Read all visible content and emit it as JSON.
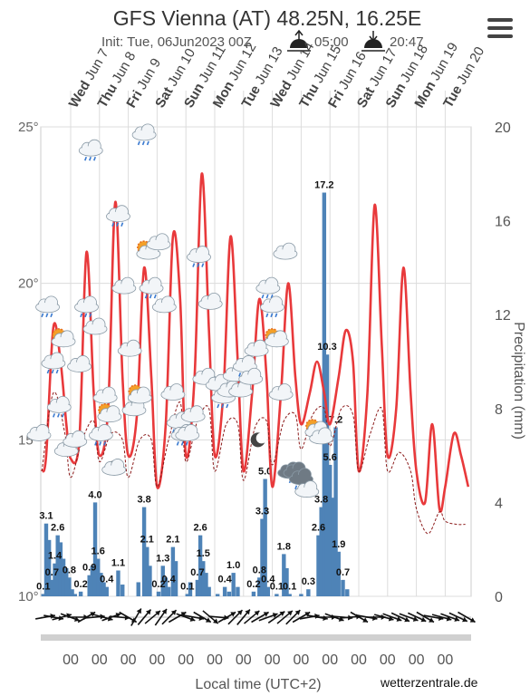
{
  "header": {
    "title": "GFS Vienna (AT) 48.25N, 16.25E",
    "init": "Init: Tue, 06Jun2023 00Z",
    "sunrise": "05:00",
    "sunset": "20:47",
    "credit": "wetterzentrale.de"
  },
  "icons": {
    "menu": "hamburger-menu-icon",
    "sunrise": "sunrise-icon",
    "sunset": "sunset-icon"
  },
  "colors": {
    "temperature": "#e8393b",
    "dewpoint": "#8b1a1a",
    "precipitation": "#4e83b7",
    "grid": "#dcdcdc"
  },
  "chart_data": {
    "type": "line",
    "x_unit": "day index (0 = Wed Jun 7 00:00 local)",
    "days": [
      {
        "dow": "Wed",
        "date": "Jun 7"
      },
      {
        "dow": "Thu",
        "date": "Jun 8"
      },
      {
        "dow": "Fri",
        "date": "Jun 9"
      },
      {
        "dow": "Sat",
        "date": "Jun 10"
      },
      {
        "dow": "Sun",
        "date": "Jun 11"
      },
      {
        "dow": "Mon",
        "date": "Jun 12"
      },
      {
        "dow": "Tue",
        "date": "Jun 13"
      },
      {
        "dow": "Wed",
        "date": "Jun 14"
      },
      {
        "dow": "Thu",
        "date": "Jun 15"
      },
      {
        "dow": "Fri",
        "date": "Jun 16"
      },
      {
        "dow": "Sat",
        "date": "Jun 17"
      },
      {
        "dow": "Sun",
        "date": "Jun 18"
      },
      {
        "dow": "Mon",
        "date": "Jun 19"
      },
      {
        "dow": "Tue",
        "date": "Jun 20"
      }
    ],
    "x_tick_label": "00",
    "xlabel": "Local time (UTC+2)",
    "y_left": {
      "ticks": [
        10,
        15,
        20,
        25
      ],
      "suffix": "°",
      "range": [
        10,
        25
      ]
    },
    "y_right": {
      "ticks": [
        0,
        4,
        8,
        12,
        16,
        20
      ],
      "label": "Precipitation (mm)",
      "range": [
        0,
        20
      ]
    },
    "series": [
      {
        "role": "temperature",
        "points": [
          [
            -1,
            14.0
          ],
          [
            -0.85,
            14.5
          ],
          [
            -0.6,
            18.6
          ],
          [
            -0.35,
            17.5
          ],
          [
            -0.15,
            15.5
          ],
          [
            0,
            14.4
          ],
          [
            0.3,
            15.0
          ],
          [
            0.55,
            21.0
          ],
          [
            0.8,
            16.5
          ],
          [
            1,
            14.5
          ],
          [
            1.3,
            16.0
          ],
          [
            1.55,
            22.6
          ],
          [
            1.8,
            17.0
          ],
          [
            2,
            14.5
          ],
          [
            2.3,
            15.8
          ],
          [
            2.55,
            20.5
          ],
          [
            2.8,
            17.0
          ],
          [
            3,
            13.5
          ],
          [
            3.3,
            15.5
          ],
          [
            3.55,
            21.5
          ],
          [
            3.8,
            19.5
          ],
          [
            4,
            14.5
          ],
          [
            4.3,
            17.0
          ],
          [
            4.55,
            23.5
          ],
          [
            4.8,
            18.5
          ],
          [
            5,
            14.5
          ],
          [
            5.3,
            16.5
          ],
          [
            5.55,
            21.5
          ],
          [
            5.8,
            17.5
          ],
          [
            6,
            14.0
          ],
          [
            6.3,
            16.5
          ],
          [
            6.55,
            19.5
          ],
          [
            6.8,
            17.0
          ],
          [
            7,
            13.5
          ],
          [
            7.3,
            16.5
          ],
          [
            7.55,
            20.0
          ],
          [
            7.8,
            17.0
          ],
          [
            8,
            15.5
          ],
          [
            8.3,
            16.5
          ],
          [
            8.55,
            17.5
          ],
          [
            8.8,
            16.5
          ],
          [
            9,
            15.5
          ],
          [
            9.3,
            17.0
          ],
          [
            9.55,
            18.5
          ],
          [
            9.8,
            17.5
          ],
          [
            10,
            14.0
          ],
          [
            10.3,
            16.5
          ],
          [
            10.55,
            22.5
          ],
          [
            10.8,
            18.0
          ],
          [
            11,
            14.5
          ],
          [
            11.3,
            16.0
          ],
          [
            11.55,
            20.5
          ],
          [
            11.8,
            16.5
          ],
          [
            12,
            14.0
          ],
          [
            12.3,
            13.0
          ],
          [
            12.55,
            15.5
          ],
          [
            12.8,
            12.8
          ],
          [
            13,
            13.5
          ],
          [
            13.3,
            15.2
          ],
          [
            13.55,
            14.5
          ],
          [
            13.8,
            13.5
          ]
        ]
      },
      {
        "role": "dewpoint",
        "points": [
          [
            -1,
            14.0
          ],
          [
            -0.6,
            16.5
          ],
          [
            -0.2,
            15.2
          ],
          [
            0,
            13.8
          ],
          [
            0.4,
            15.0
          ],
          [
            0.8,
            15.6
          ],
          [
            1,
            14.3
          ],
          [
            1.4,
            15.2
          ],
          [
            1.8,
            15.0
          ],
          [
            2,
            13.8
          ],
          [
            2.4,
            15.0
          ],
          [
            2.8,
            15.0
          ],
          [
            3,
            13.5
          ],
          [
            3.4,
            15.0
          ],
          [
            3.8,
            16.2
          ],
          [
            4,
            14.3
          ],
          [
            4.4,
            15.6
          ],
          [
            4.8,
            16.0
          ],
          [
            5,
            14.0
          ],
          [
            5.4,
            15.5
          ],
          [
            5.8,
            15.5
          ],
          [
            6,
            13.7
          ],
          [
            6.4,
            15.4
          ],
          [
            6.8,
            15.6
          ],
          [
            7,
            14.2
          ],
          [
            7.4,
            15.6
          ],
          [
            7.8,
            15.8
          ],
          [
            8,
            14.7
          ],
          [
            8.4,
            15.8
          ],
          [
            8.8,
            16.0
          ],
          [
            9,
            14.8
          ],
          [
            9.4,
            16.0
          ],
          [
            9.8,
            15.8
          ],
          [
            10,
            14.0
          ],
          [
            10.4,
            15.2
          ],
          [
            10.8,
            16.0
          ],
          [
            11,
            14.0
          ],
          [
            11.4,
            14.6
          ],
          [
            11.8,
            14.0
          ],
          [
            12,
            12.8
          ],
          [
            12.4,
            12.0
          ],
          [
            12.8,
            12.7
          ],
          [
            13,
            12.4
          ],
          [
            13.4,
            12.3
          ],
          [
            13.7,
            12.3
          ]
        ]
      }
    ],
    "precipitation_bars": [
      [
        -0.95,
        0.1
      ],
      [
        -0.85,
        3.1
      ],
      [
        -0.75,
        2.4
      ],
      [
        -0.65,
        0.7
      ],
      [
        -0.55,
        1.4
      ],
      [
        -0.45,
        2.6
      ],
      [
        -0.35,
        2.3
      ],
      [
        -0.25,
        1.6
      ],
      [
        -0.15,
        1.2
      ],
      [
        -0.05,
        0.8
      ],
      [
        0.05,
        0.3
      ],
      [
        0.15,
        0.1
      ],
      [
        0.35,
        0.2
      ],
      [
        0.65,
        0.9
      ],
      [
        0.75,
        1.3
      ],
      [
        0.85,
        4.0
      ],
      [
        0.95,
        1.6
      ],
      [
        1.05,
        1.0
      ],
      [
        1.15,
        0.6
      ],
      [
        1.25,
        0.4
      ],
      [
        1.65,
        1.1
      ],
      [
        1.8,
        0.5
      ],
      [
        2.35,
        0.6
      ],
      [
        2.55,
        3.8
      ],
      [
        2.65,
        2.1
      ],
      [
        2.75,
        1.3
      ],
      [
        3.05,
        0.2
      ],
      [
        3.2,
        1.3
      ],
      [
        3.3,
        0.8
      ],
      [
        3.4,
        0.4
      ],
      [
        3.55,
        2.1
      ],
      [
        3.65,
        1.5
      ],
      [
        4.05,
        0.1
      ],
      [
        4.15,
        0.6
      ],
      [
        4.4,
        0.7
      ],
      [
        4.5,
        2.6
      ],
      [
        4.6,
        1.5
      ],
      [
        4.7,
        1.0
      ],
      [
        4.8,
        0.4
      ],
      [
        5.1,
        0.1
      ],
      [
        5.35,
        0.4
      ],
      [
        5.5,
        0.2
      ],
      [
        5.65,
        1.0
      ],
      [
        5.8,
        0.4
      ],
      [
        6.35,
        0.2
      ],
      [
        6.55,
        0.8
      ],
      [
        6.65,
        3.3
      ],
      [
        6.75,
        5.0
      ],
      [
        6.85,
        0.4
      ],
      [
        7.15,
        0.1
      ],
      [
        7.4,
        1.8
      ],
      [
        7.5,
        1.2
      ],
      [
        7.6,
        0.1
      ],
      [
        8.0,
        0.1
      ],
      [
        8.25,
        0.3
      ],
      [
        8.6,
        2.6
      ],
      [
        8.7,
        3.8
      ],
      [
        8.8,
        17.2
      ],
      [
        8.9,
        10.3
      ],
      [
        9.0,
        5.6
      ],
      [
        9.1,
        4.2
      ],
      [
        9.2,
        7.2
      ],
      [
        9.3,
        1.9
      ],
      [
        9.45,
        0.7
      ],
      [
        9.6,
        0.3
      ]
    ],
    "bar_labels": [
      {
        "x": -0.95,
        "v": "0.1"
      },
      {
        "x": -0.85,
        "v": "3.1"
      },
      {
        "x": -0.65,
        "v": "0.7"
      },
      {
        "x": -0.55,
        "v": "1.4"
      },
      {
        "x": -0.45,
        "v": "2.6"
      },
      {
        "x": -0.05,
        "v": "0.8"
      },
      {
        "x": 0.35,
        "v": "0.2"
      },
      {
        "x": 0.65,
        "v": "0.9"
      },
      {
        "x": 0.85,
        "v": "4.0"
      },
      {
        "x": 0.95,
        "v": "1.6"
      },
      {
        "x": 1.25,
        "v": "0.4"
      },
      {
        "x": 1.65,
        "v": "1.1"
      },
      {
        "x": 2.55,
        "v": "3.8"
      },
      {
        "x": 2.65,
        "v": "2.1"
      },
      {
        "x": 3.05,
        "v": "0.2"
      },
      {
        "x": 3.2,
        "v": "1.3"
      },
      {
        "x": 3.4,
        "v": "0.4"
      },
      {
        "x": 3.55,
        "v": "2.1"
      },
      {
        "x": 4.05,
        "v": "0.1"
      },
      {
        "x": 4.4,
        "v": "0.7"
      },
      {
        "x": 4.5,
        "v": "2.6"
      },
      {
        "x": 4.6,
        "v": "1.5"
      },
      {
        "x": 5.35,
        "v": "0.4"
      },
      {
        "x": 5.65,
        "v": "1.0"
      },
      {
        "x": 6.35,
        "v": "0.2"
      },
      {
        "x": 6.55,
        "v": "0.8"
      },
      {
        "x": 6.65,
        "v": "3.3"
      },
      {
        "x": 6.75,
        "v": "5.0"
      },
      {
        "x": 6.85,
        "v": "0.4"
      },
      {
        "x": 7.15,
        "v": "0.1"
      },
      {
        "x": 7.4,
        "v": "1.8"
      },
      {
        "x": 7.6,
        "v": "0.1"
      },
      {
        "x": 8.25,
        "v": "0.3"
      },
      {
        "x": 8.6,
        "v": "2.6"
      },
      {
        "x": 8.7,
        "v": "3.8"
      },
      {
        "x": 8.8,
        "v": "17.2"
      },
      {
        "x": 8.9,
        "v": "10.3"
      },
      {
        "x": 9.0,
        "v": "5.6"
      },
      {
        "x": 9.2,
        "v": "7.2"
      },
      {
        "x": 9.3,
        "v": "1.9"
      },
      {
        "x": 9.45,
        "v": "0.7"
      }
    ],
    "weather_icons": [
      {
        "x": -1.1,
        "t": 15.2,
        "icon": "cloud"
      },
      {
        "x": -0.8,
        "t": 19.3,
        "icon": "rain"
      },
      {
        "x": -0.6,
        "t": 17.5,
        "icon": "rain"
      },
      {
        "x": -0.4,
        "t": 16.1,
        "icon": "rain"
      },
      {
        "x": -0.25,
        "t": 18.2,
        "icon": "sun-cloud"
      },
      {
        "x": -0.15,
        "t": 14.7,
        "icon": "cloud"
      },
      {
        "x": 0.15,
        "t": 15.0,
        "icon": "cloud"
      },
      {
        "x": 0.3,
        "t": 17.4,
        "icon": "cloud"
      },
      {
        "x": 0.55,
        "t": 19.3,
        "icon": "rain"
      },
      {
        "x": 0.7,
        "t": 24.3,
        "icon": "rain"
      },
      {
        "x": 0.85,
        "t": 18.6,
        "icon": "cloud"
      },
      {
        "x": 1.05,
        "t": 15.2,
        "icon": "rain"
      },
      {
        "x": 1.2,
        "t": 16.4,
        "icon": "cloud"
      },
      {
        "x": 1.35,
        "t": 15.8,
        "icon": "sun-cloud"
      },
      {
        "x": 1.5,
        "t": 14.1,
        "icon": "moon-cloud"
      },
      {
        "x": 1.65,
        "t": 22.2,
        "icon": "rain"
      },
      {
        "x": 1.85,
        "t": 19.9,
        "icon": "cloud"
      },
      {
        "x": 2.05,
        "t": 17.9,
        "icon": "cloud"
      },
      {
        "x": 2.2,
        "t": 16.0,
        "icon": "cloud"
      },
      {
        "x": 2.4,
        "t": 16.4,
        "icon": "sun-cloud"
      },
      {
        "x": 2.55,
        "t": 24.8,
        "icon": "rain"
      },
      {
        "x": 2.7,
        "t": 21.0,
        "icon": "sun-cloud"
      },
      {
        "x": 2.8,
        "t": 19.9,
        "icon": "rain"
      },
      {
        "x": 3.05,
        "t": 21.3,
        "icon": "cloud"
      },
      {
        "x": 3.25,
        "t": 19.3,
        "icon": "cloud"
      },
      {
        "x": 3.55,
        "t": 16.5,
        "icon": "cloud"
      },
      {
        "x": 3.75,
        "t": 15.6,
        "icon": "rain"
      },
      {
        "x": 3.9,
        "t": 15.2,
        "icon": "rain"
      },
      {
        "x": 4.05,
        "t": 15.2,
        "icon": "cloud"
      },
      {
        "x": 4.25,
        "t": 15.8,
        "icon": "cloud"
      },
      {
        "x": 4.45,
        "t": 20.9,
        "icon": "rain"
      },
      {
        "x": 4.65,
        "t": 17.0,
        "icon": "cloud"
      },
      {
        "x": 4.85,
        "t": 19.4,
        "icon": "cloud"
      },
      {
        "x": 5.1,
        "t": 16.8,
        "icon": "cloud"
      },
      {
        "x": 5.3,
        "t": 16.4,
        "icon": "rain"
      },
      {
        "x": 5.5,
        "t": 16.6,
        "icon": "cloud"
      },
      {
        "x": 5.7,
        "t": 17.1,
        "icon": "cloud"
      },
      {
        "x": 5.9,
        "t": 16.6,
        "icon": "cloud"
      },
      {
        "x": 6.05,
        "t": 17.4,
        "icon": "rain"
      },
      {
        "x": 6.25,
        "t": 17.0,
        "icon": "cloud"
      },
      {
        "x": 6.45,
        "t": 17.9,
        "icon": "cloud"
      },
      {
        "x": 6.5,
        "t": 15.0,
        "icon": "moon"
      },
      {
        "x": 6.85,
        "t": 19.9,
        "icon": "rain"
      },
      {
        "x": 7.0,
        "t": 19.3,
        "icon": "rain"
      },
      {
        "x": 7.15,
        "t": 18.2,
        "icon": "sun-cloud"
      },
      {
        "x": 7.3,
        "t": 16.5,
        "icon": "cloud"
      },
      {
        "x": 7.45,
        "t": 21.0,
        "icon": "cloud"
      },
      {
        "x": 7.6,
        "t": 14.0,
        "icon": "cloud-dark"
      },
      {
        "x": 7.8,
        "t": 14.0,
        "icon": "rain-dark"
      },
      {
        "x": 8.0,
        "t": 13.8,
        "icon": "rain-dark"
      },
      {
        "x": 8.2,
        "t": 13.4,
        "icon": "cloud"
      },
      {
        "x": 8.55,
        "t": 15.3,
        "icon": "sun-cloud"
      },
      {
        "x": 8.7,
        "t": 15.1,
        "icon": "cloud"
      }
    ],
    "wind_directions_deg": [
      80,
      100,
      75,
      110,
      90,
      60,
      85,
      105,
      70,
      95,
      120,
      30,
      40,
      50,
      35,
      45,
      60,
      110,
      100,
      120,
      130,
      95,
      60,
      45,
      40,
      50,
      60,
      70,
      55,
      50,
      45,
      60,
      80,
      100,
      90,
      110,
      95,
      85,
      120,
      100,
      90,
      105,
      110,
      115,
      110,
      115,
      120,
      100,
      105,
      110,
      115,
      120
    ]
  }
}
